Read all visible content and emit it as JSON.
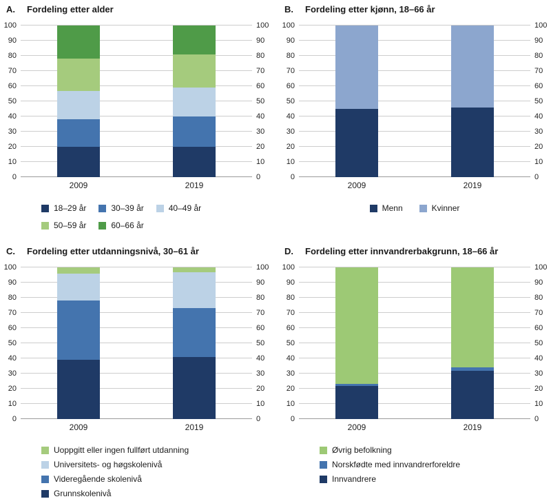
{
  "chart_data": [
    {
      "type": "bar",
      "stacked": true,
      "letter": "A.",
      "title": "Fordeling etter alder",
      "categories": [
        "2009",
        "2019"
      ],
      "ylim": [
        0,
        100
      ],
      "ytick_step": 10,
      "grid": true,
      "series": [
        {
          "name": "18–29 år",
          "color": "#1f3a66",
          "values": [
            20,
            20
          ]
        },
        {
          "name": "30–39 år",
          "color": "#4474ae",
          "values": [
            18,
            20
          ]
        },
        {
          "name": "40–49 år",
          "color": "#bcd2e6",
          "values": [
            19,
            19
          ]
        },
        {
          "name": "50–59 år",
          "color": "#a5cb7d",
          "values": [
            21,
            22
          ]
        },
        {
          "name": "60–66 år",
          "color": "#4f9b48",
          "values": [
            22,
            19
          ]
        }
      ],
      "legend": {
        "layout": "wrap",
        "position": "bottom",
        "order": [
          0,
          1,
          2,
          3,
          4
        ]
      }
    },
    {
      "type": "bar",
      "stacked": true,
      "letter": "B.",
      "title": "Fordeling etter kjønn, 18–66 år",
      "categories": [
        "2009",
        "2019"
      ],
      "ylim": [
        0,
        100
      ],
      "ytick_step": 10,
      "grid": true,
      "series": [
        {
          "name": "Menn",
          "color": "#1f3a66",
          "values": [
            45,
            46
          ]
        },
        {
          "name": "Kvinner",
          "color": "#8ca6ce",
          "values": [
            55,
            54
          ]
        }
      ],
      "legend": {
        "layout": "row",
        "position": "bottom",
        "order": [
          0,
          1
        ]
      }
    },
    {
      "type": "bar",
      "stacked": true,
      "letter": "C.",
      "title": "Fordeling etter utdanningsnivå, 30–61 år",
      "categories": [
        "2009",
        "2019"
      ],
      "ylim": [
        0,
        100
      ],
      "ytick_step": 10,
      "grid": true,
      "series": [
        {
          "name": "Grunnskolenivå",
          "color": "#1f3a66",
          "values": [
            39,
            41
          ]
        },
        {
          "name": "Videregående skolenivå",
          "color": "#4474ae",
          "values": [
            39,
            32
          ]
        },
        {
          "name": "Universitets- og høgskolenivå",
          "color": "#bcd2e6",
          "values": [
            18,
            24
          ]
        },
        {
          "name": "Uoppgitt eller ingen fullført utdanning",
          "color": "#a5cb7d",
          "values": [
            4,
            3
          ]
        }
      ],
      "legend": {
        "layout": "column",
        "position": "bottom",
        "order": [
          3,
          2,
          1,
          0
        ]
      }
    },
    {
      "type": "bar",
      "stacked": true,
      "letter": "D.",
      "title": "Fordeling etter innvandrerbakgrunn, 18–66 år",
      "categories": [
        "2009",
        "2019"
      ],
      "ylim": [
        0,
        100
      ],
      "ytick_step": 10,
      "grid": true,
      "series": [
        {
          "name": "Innvandrere",
          "color": "#1f3a66",
          "values": [
            22,
            32
          ]
        },
        {
          "name": "Norskfødte med innvandrerforeldre",
          "color": "#4474ae",
          "values": [
            1,
            2
          ]
        },
        {
          "name": "Øvrig befolkning",
          "color": "#9dc975",
          "values": [
            77,
            66
          ]
        }
      ],
      "legend": {
        "layout": "column",
        "position": "bottom",
        "order": [
          2,
          1,
          0
        ]
      }
    }
  ]
}
